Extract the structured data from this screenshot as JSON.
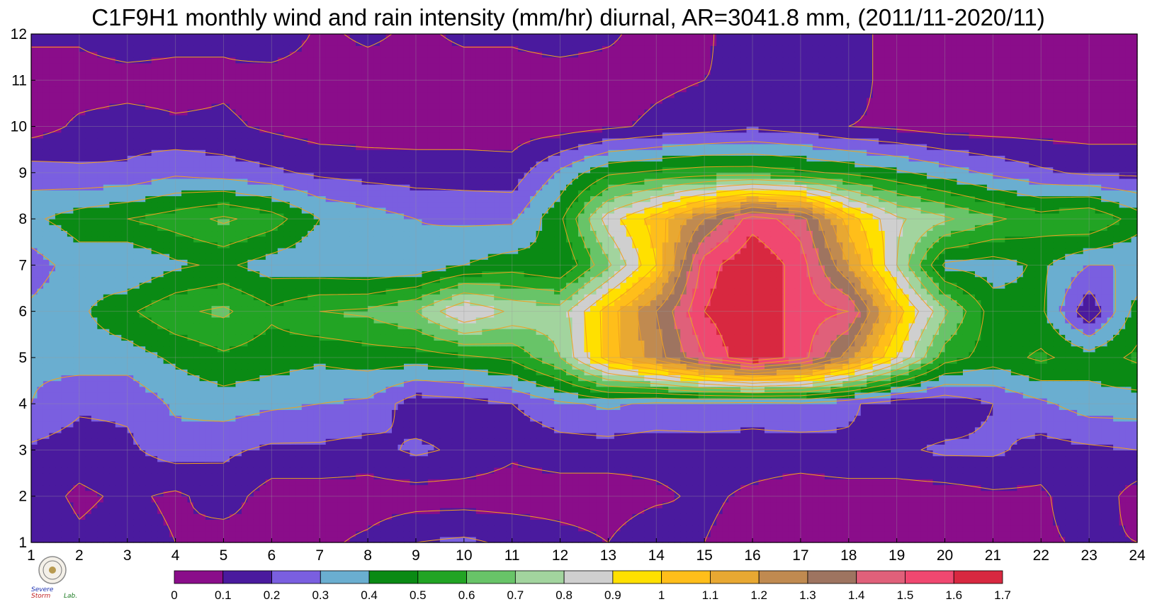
{
  "chart_data": {
    "type": "heatmap",
    "title": "C1F9H1 monthly wind and rain intensity (mm/hr) diurnal, AR=3041.8 mm, (2011/11-2020/11)",
    "x": {
      "min": 1,
      "max": 24,
      "ticks": [
        1,
        2,
        3,
        4,
        5,
        6,
        7,
        8,
        9,
        10,
        11,
        12,
        13,
        14,
        15,
        16,
        17,
        18,
        19,
        20,
        21,
        22,
        23,
        24
      ]
    },
    "y": {
      "min": 1,
      "max": 12,
      "ticks": [
        1,
        2,
        3,
        4,
        5,
        6,
        7,
        8,
        9,
        10,
        11,
        12
      ]
    },
    "grid": true,
    "colorbar": {
      "position": "bottom",
      "levels": [
        0,
        0.1,
        0.2,
        0.3,
        0.4,
        0.5,
        0.6,
        0.7,
        0.8,
        0.9,
        1,
        1.1,
        1.2,
        1.3,
        1.4,
        1.5,
        1.6,
        1.7
      ],
      "colors": [
        "#8a0d8a",
        "#4a1a9e",
        "#7a5fe0",
        "#6aaed0",
        "#0a8a14",
        "#22a424",
        "#68c468",
        "#a2d49e",
        "#cfcfcf",
        "#ffe000",
        "#ffbe1a",
        "#e8a832",
        "#c08a50",
        "#9e7460",
        "#e0607a",
        "#f04870",
        "#d82840"
      ],
      "labels": [
        "0",
        "0.1",
        "0.2",
        "0.3",
        "0.4",
        "0.5",
        "0.6",
        "0.7",
        "0.8",
        "0.9",
        "1",
        "1.1",
        "1.2",
        "1.3",
        "1.4",
        "1.5",
        "1.6",
        "1.7"
      ]
    },
    "contour_color": "#f0a020",
    "values": [
      [
        0.18,
        0.12,
        0.15,
        0.1,
        0.05,
        0.08,
        0.08,
        0.12,
        0.2,
        0.22,
        0.18,
        0.14,
        0.1,
        0.18,
        0.1,
        0.05,
        0.05,
        0.05,
        0.05,
        0.05,
        0.05,
        0.08,
        0.12,
        0.1
      ],
      [
        0.15,
        0.08,
        0.12,
        0.08,
        0.15,
        0.05,
        0.05,
        0.05,
        0.05,
        0.05,
        0.05,
        0.05,
        0.05,
        0.08,
        0.12,
        0.08,
        0.05,
        0.05,
        0.05,
        0.05,
        0.08,
        0.08,
        0.18,
        0.05
      ],
      [
        0.18,
        0.15,
        0.18,
        0.25,
        0.22,
        0.18,
        0.18,
        0.16,
        0.22,
        0.18,
        0.12,
        0.15,
        0.15,
        0.14,
        0.15,
        0.15,
        0.15,
        0.18,
        0.18,
        0.22,
        0.22,
        0.16,
        0.18,
        0.2
      ],
      [
        0.3,
        0.22,
        0.22,
        0.32,
        0.35,
        0.32,
        0.3,
        0.28,
        0.14,
        0.16,
        0.2,
        0.28,
        0.32,
        0.28,
        0.28,
        0.26,
        0.28,
        0.22,
        0.14,
        0.12,
        0.2,
        0.28,
        0.35,
        0.35
      ],
      [
        0.32,
        0.35,
        0.35,
        0.42,
        0.48,
        0.45,
        0.42,
        0.45,
        0.45,
        0.48,
        0.52,
        0.7,
        1.05,
        1.25,
        1.5,
        1.7,
        1.55,
        1.25,
        0.9,
        0.55,
        0.45,
        0.52,
        0.45,
        0.52
      ],
      [
        0.32,
        0.38,
        0.48,
        0.58,
        0.62,
        0.52,
        0.6,
        0.62,
        0.7,
        0.9,
        0.78,
        0.75,
        1.05,
        1.3,
        1.6,
        1.7,
        1.55,
        1.5,
        1.05,
        0.72,
        0.45,
        0.42,
        0.12,
        0.45
      ],
      [
        0.25,
        0.35,
        0.3,
        0.38,
        0.42,
        0.35,
        0.32,
        0.3,
        0.32,
        0.4,
        0.45,
        0.4,
        0.68,
        1.0,
        1.55,
        1.7,
        1.55,
        1.2,
        0.8,
        0.38,
        0.35,
        0.42,
        0.3,
        0.3
      ],
      [
        0.38,
        0.45,
        0.5,
        0.55,
        0.62,
        0.55,
        0.4,
        0.35,
        0.3,
        0.28,
        0.28,
        0.48,
        0.85,
        1.05,
        1.3,
        1.55,
        1.45,
        1.05,
        0.82,
        0.72,
        0.62,
        0.55,
        0.6,
        0.45
      ],
      [
        0.25,
        0.22,
        0.22,
        0.28,
        0.25,
        0.22,
        0.18,
        0.16,
        0.15,
        0.15,
        0.14,
        0.32,
        0.48,
        0.52,
        0.55,
        0.55,
        0.52,
        0.48,
        0.42,
        0.35,
        0.28,
        0.22,
        0.18,
        0.18
      ],
      [
        0.05,
        0.12,
        0.15,
        0.12,
        0.12,
        0.08,
        0.05,
        0.05,
        0.05,
        0.05,
        0.05,
        0.05,
        0.08,
        0.12,
        0.15,
        0.18,
        0.15,
        0.1,
        0.08,
        0.05,
        0.05,
        0.05,
        0.05,
        0.05
      ],
      [
        0.05,
        0.05,
        0.05,
        0.05,
        0.08,
        0.05,
        0.05,
        0.05,
        0.05,
        0.05,
        0.05,
        0.05,
        0.05,
        0.08,
        0.1,
        0.12,
        0.15,
        0.15,
        0.05,
        0.08,
        0.05,
        0.05,
        0.05,
        0.05
      ],
      [
        0.12,
        0.12,
        0.18,
        0.15,
        0.12,
        0.18,
        0.08,
        0.12,
        0.08,
        0.12,
        0.12,
        0.15,
        0.12,
        0.05,
        0.08,
        0.18,
        0.18,
        0.15,
        0.05,
        0.05,
        0.05,
        0.05,
        0.05,
        0.05
      ]
    ]
  },
  "logo": {
    "lines": [
      "Severe",
      "Storm",
      "Lab."
    ]
  }
}
